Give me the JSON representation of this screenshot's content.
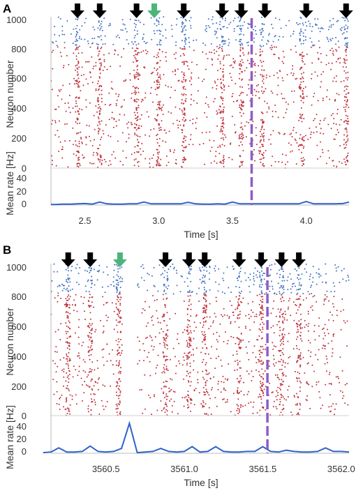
{
  "chart_data": [
    {
      "type": "scatter",
      "panel_label": "A",
      "raster": {
        "ylabel": "Neuron number",
        "ylim": [
          0,
          1000
        ],
        "yticks": [
          "0",
          "200",
          "400",
          "600",
          "800",
          "1000"
        ],
        "series": [
          {
            "name": "",
            "color": "#c0303a",
            "neuron_range": [
              0,
              800
            ]
          },
          {
            "name": "",
            "color": "#3f6fbf",
            "neuron_range": [
              800,
              1000
            ]
          }
        ]
      },
      "rate": {
        "ylabel": "Mean rate [Hz]",
        "ylim": [
          0,
          50
        ],
        "yticks": [
          "0",
          "20",
          "40"
        ],
        "color": "#2f62c8",
        "x": [
          2.27,
          2.3,
          2.35,
          2.4,
          2.45,
          2.5,
          2.55,
          2.6,
          2.65,
          2.7,
          2.75,
          2.8,
          2.85,
          2.9,
          2.95,
          3.0,
          3.05,
          3.1,
          3.15,
          3.2,
          3.25,
          3.3,
          3.35,
          3.4,
          3.45,
          3.5,
          3.55,
          3.6,
          3.65,
          3.7,
          3.75,
          3.8,
          3.85,
          3.9,
          3.95,
          4.0,
          4.05,
          4.1,
          4.15,
          4.2,
          4.25,
          4.29
        ],
        "y": [
          1,
          1,
          1.5,
          1.5,
          2,
          2.5,
          1.5,
          5,
          2,
          1.5,
          1.5,
          2,
          2,
          5,
          2,
          2,
          2,
          2,
          2,
          4.5,
          2,
          1.5,
          1.5,
          2,
          1.5,
          5,
          2,
          2,
          2,
          2,
          2,
          2,
          2,
          2,
          2,
          6,
          2,
          2,
          2,
          2,
          2.5,
          5
        ]
      },
      "xlabel": "Time [s]",
      "xlim": [
        2.27,
        4.29
      ],
      "xticks": [
        2.5,
        3.0,
        3.5,
        4.0
      ],
      "xtick_labels": [
        "2.5",
        "3.0",
        "3.5",
        "4.0"
      ],
      "burst_times": [
        2.45,
        2.6,
        2.85,
        3.0,
        3.17,
        3.43,
        3.56,
        3.7,
        3.97,
        4.27
      ],
      "arrows": [
        {
          "t": 2.45,
          "color": "#000000"
        },
        {
          "t": 2.6,
          "color": "#000000"
        },
        {
          "t": 2.85,
          "color": "#000000"
        },
        {
          "t": 2.97,
          "color": "#4db57a"
        },
        {
          "t": 3.17,
          "color": "#000000"
        },
        {
          "t": 3.43,
          "color": "#000000"
        },
        {
          "t": 3.56,
          "color": "#000000"
        },
        {
          "t": 3.72,
          "color": "#000000"
        },
        {
          "t": 4.0,
          "color": "#000000"
        },
        {
          "t": 4.27,
          "color": "#000000"
        }
      ],
      "dashed_line": {
        "t": 3.63,
        "color": "#8e5cc8"
      }
    },
    {
      "type": "scatter",
      "panel_label": "B",
      "raster": {
        "ylabel": "Neuron number",
        "ylim": [
          0,
          1000
        ],
        "yticks": [
          "0",
          "200",
          "400",
          "600",
          "800",
          "1000"
        ],
        "series": [
          {
            "name": "",
            "color": "#c0303a",
            "neuron_range": [
              0,
              800
            ]
          },
          {
            "name": "",
            "color": "#3f6fbf",
            "neuron_range": [
              800,
              1000
            ]
          }
        ]
      },
      "rate": {
        "ylabel": "Mean rate [Hz]",
        "ylim": [
          0,
          50
        ],
        "yticks": [
          "0",
          "20",
          "40"
        ],
        "color": "#2f62c8",
        "x": [
          3560.1,
          3560.15,
          3560.2,
          3560.25,
          3560.3,
          3560.35,
          3560.4,
          3560.45,
          3560.5,
          3560.55,
          3560.6,
          3560.65,
          3560.7,
          3560.75,
          3560.8,
          3560.85,
          3560.9,
          3560.95,
          3561.0,
          3561.05,
          3561.1,
          3561.15,
          3561.2,
          3561.25,
          3561.3,
          3561.35,
          3561.4,
          3561.45,
          3561.5,
          3561.55,
          3561.6,
          3561.65,
          3561.7,
          3561.75,
          3561.8,
          3561.85,
          3561.9,
          3561.95,
          3562.0,
          3562.05
        ],
        "y": [
          1,
          2,
          9,
          2,
          2,
          3,
          12,
          3,
          2,
          3,
          8,
          50,
          1,
          2,
          3,
          8,
          3,
          2,
          3,
          11,
          2,
          3,
          11,
          3,
          2,
          2,
          3,
          3,
          11,
          3,
          2,
          5,
          3,
          2,
          2,
          3,
          9,
          3,
          3,
          2
        ]
      },
      "xlabel": "Time [s]",
      "xlim": [
        3560.15,
        3562.05
      ],
      "xticks": [
        3560.5,
        3561.0,
        3561.5,
        3562.0
      ],
      "xtick_labels": [
        "3560.5",
        "3561.0",
        "3561.5",
        "3562.0"
      ],
      "burst_times": [
        3560.26,
        3560.4,
        3560.58,
        3560.88,
        3561.03,
        3561.13,
        3561.35,
        3561.49,
        3561.62,
        3561.73
      ],
      "gap": [
        3560.61,
        3560.7
      ],
      "arrows": [
        {
          "t": 3560.26,
          "color": "#000000"
        },
        {
          "t": 3560.4,
          "color": "#000000"
        },
        {
          "t": 3560.59,
          "color": "#4db57a"
        },
        {
          "t": 3560.88,
          "color": "#000000"
        },
        {
          "t": 3561.03,
          "color": "#000000"
        },
        {
          "t": 3561.13,
          "color": "#000000"
        },
        {
          "t": 3561.35,
          "color": "#000000"
        },
        {
          "t": 3561.49,
          "color": "#000000"
        },
        {
          "t": 3561.62,
          "color": "#000000"
        },
        {
          "t": 3561.73,
          "color": "#000000"
        }
      ],
      "dashed_line": {
        "t": 3561.53,
        "color": "#8e5cc8"
      }
    }
  ]
}
